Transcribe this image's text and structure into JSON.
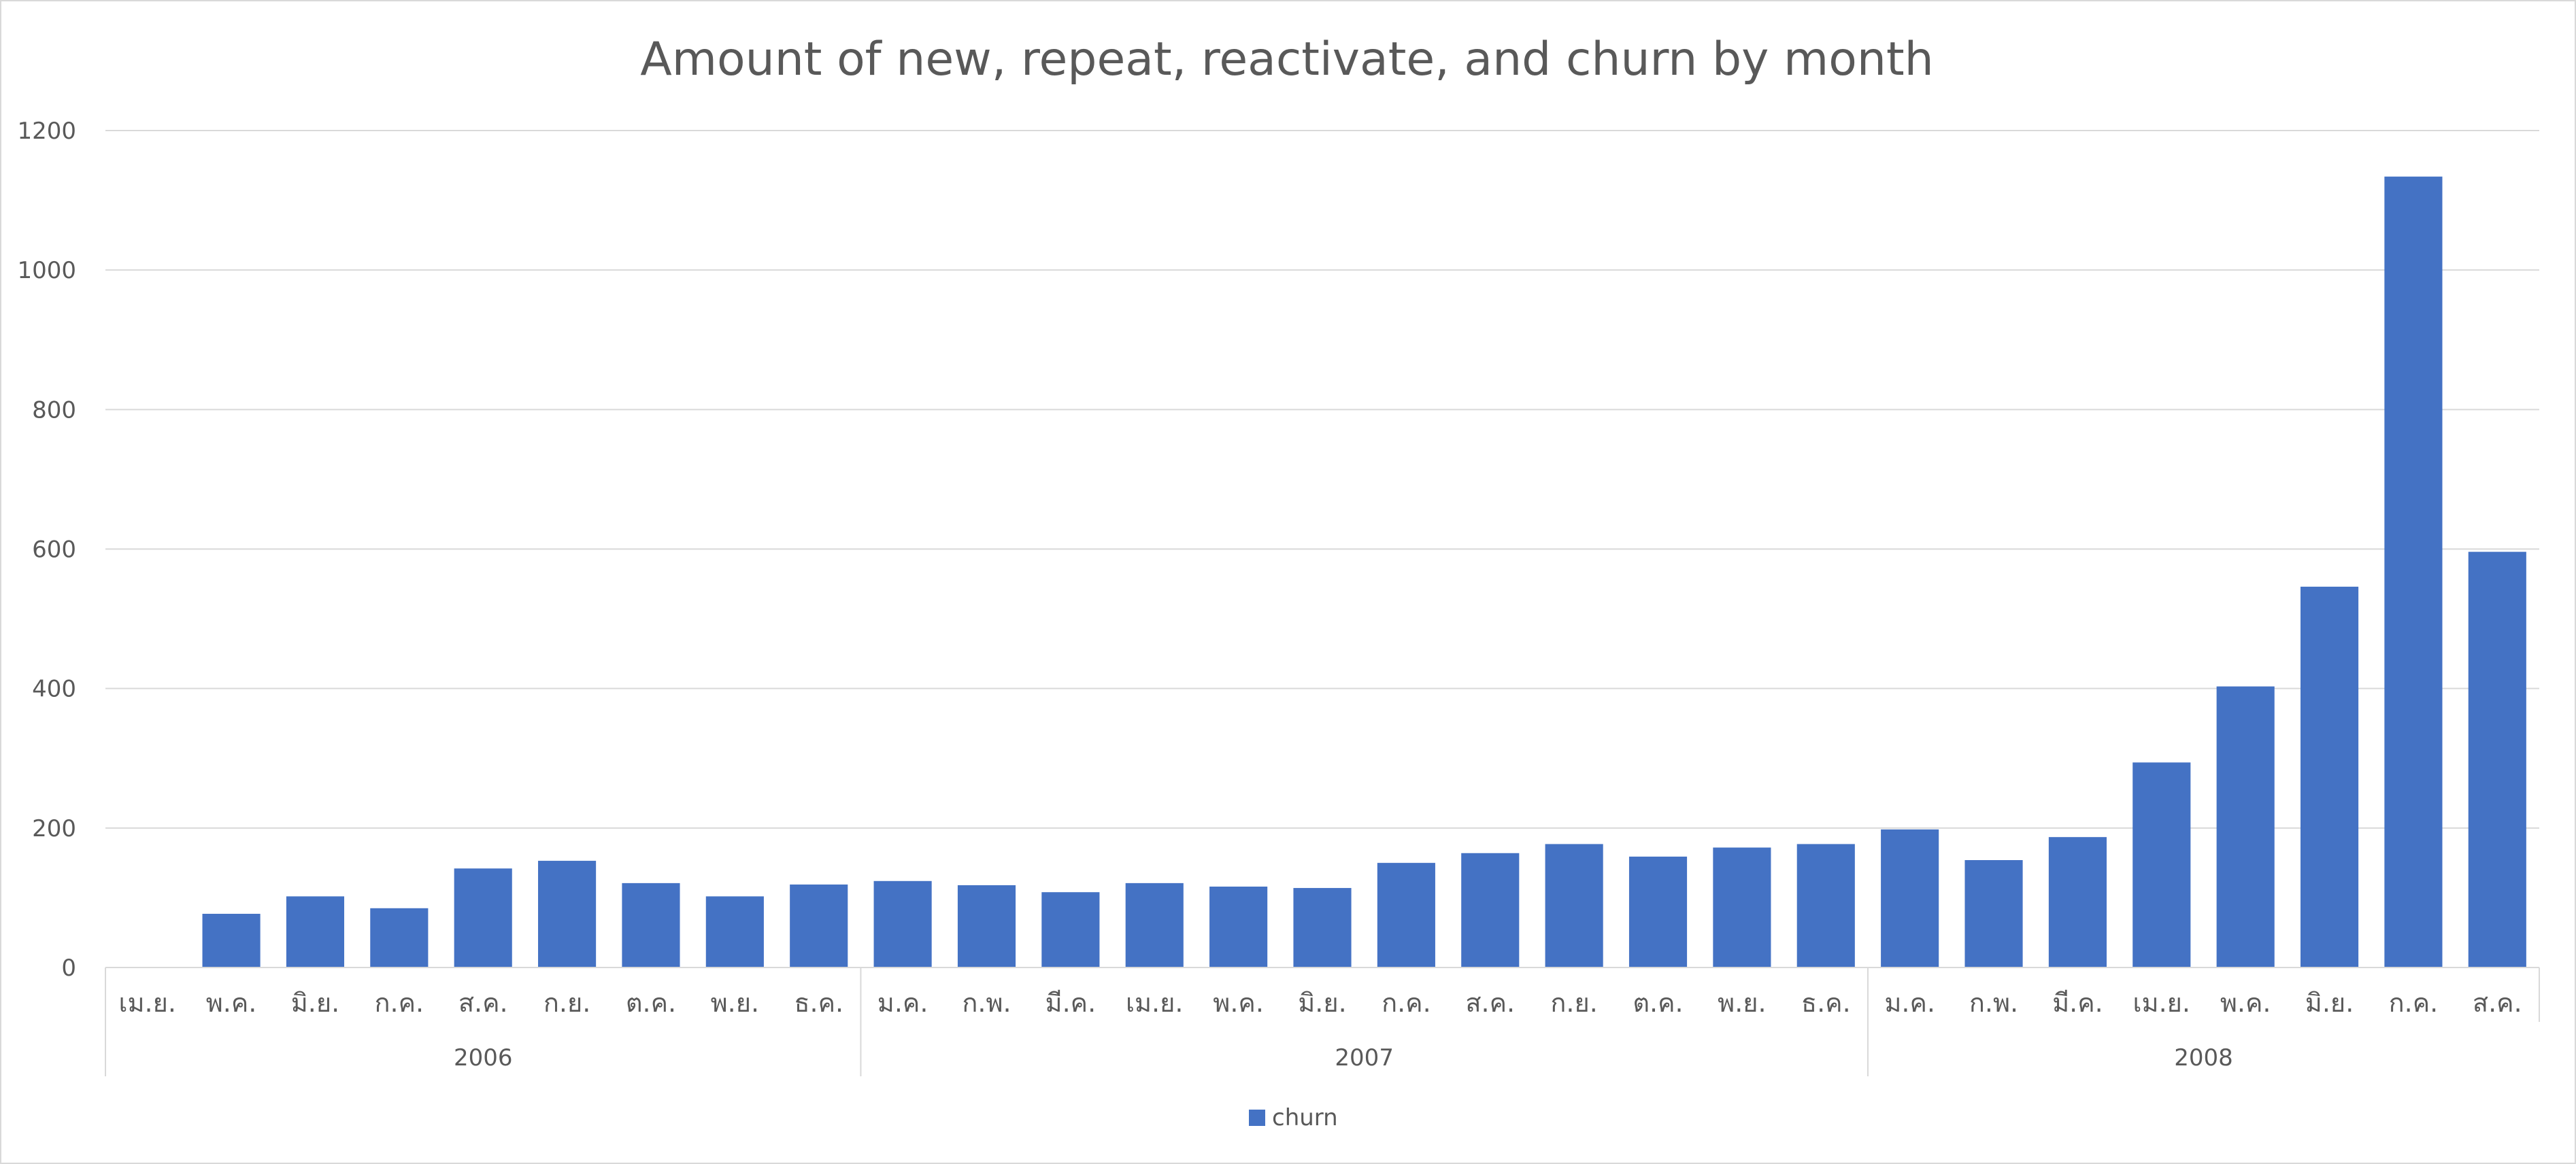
{
  "chart_data": {
    "type": "bar",
    "title": "Amount of new, repeat, reactivate, and churn by month",
    "xlabel": "",
    "ylabel": "",
    "ylim": [
      0,
      1200
    ],
    "yticks": [
      0,
      200,
      400,
      600,
      800,
      1000,
      1200
    ],
    "grid": true,
    "legend_position": "bottom",
    "categories": [
      "เม.ย.",
      "พ.ค.",
      "มิ.ย.",
      "ก.ค.",
      "ส.ค.",
      "ก.ย.",
      "ต.ค.",
      "พ.ย.",
      "ธ.ค.",
      "ม.ค.",
      "ก.พ.",
      "มี.ค.",
      "เม.ย.",
      "พ.ค.",
      "มิ.ย.",
      "ก.ค.",
      "ส.ค.",
      "ก.ย.",
      "ต.ค.",
      "พ.ย.",
      "ธ.ค.",
      "ม.ค.",
      "ก.พ.",
      "มี.ค.",
      "เม.ย.",
      "พ.ค.",
      "มิ.ย.",
      "ก.ค.",
      "ส.ค."
    ],
    "year_groups": [
      {
        "label": "2006",
        "count": 9
      },
      {
        "label": "2007",
        "count": 12
      },
      {
        "label": "2008",
        "count": 8
      }
    ],
    "series": [
      {
        "name": "churn",
        "color": "#4472c4",
        "values": [
          0,
          77,
          102,
          85,
          142,
          153,
          121,
          102,
          119,
          124,
          118,
          108,
          121,
          116,
          114,
          150,
          164,
          177,
          159,
          172,
          177,
          198,
          154,
          187,
          294,
          403,
          546,
          1134,
          596
        ]
      }
    ]
  }
}
